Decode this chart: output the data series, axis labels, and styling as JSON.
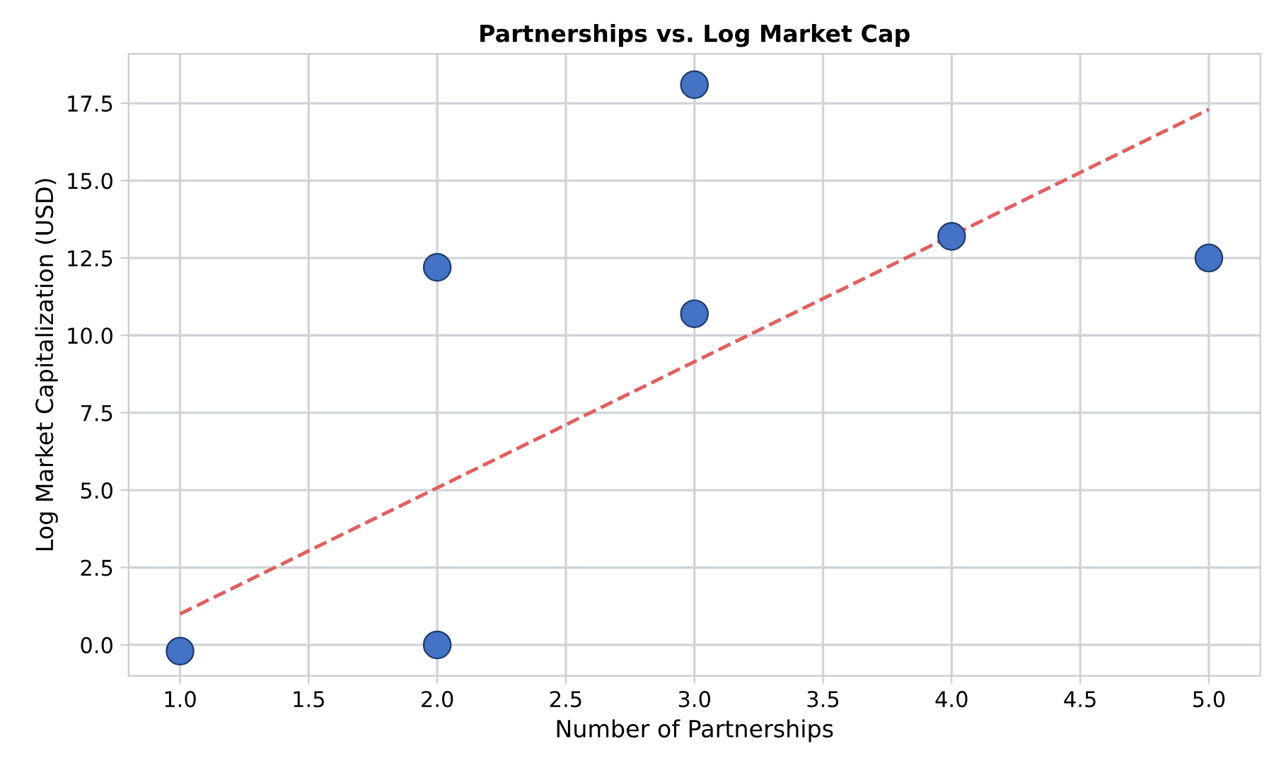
{
  "chart_data": {
    "type": "scatter",
    "title": "Partnerships vs. Log Market Cap",
    "xlabel": "Number of Partnerships",
    "ylabel": "Log Market Capitalization (USD)",
    "series": [
      {
        "color": "#4472c4",
        "x": [
          1.0,
          2.0,
          2.0,
          3.0,
          3.0,
          4.0,
          5.0
        ],
        "values": [
          -0.2,
          0.0,
          12.2,
          18.1,
          10.7,
          13.2,
          12.5
        ],
        "marker": "circle"
      },
      {
        "type": "line",
        "color": "#e06060",
        "x": [
          1.0,
          5.0
        ],
        "values": [
          1.0,
          17.3
        ],
        "line_style": "dashed"
      }
    ],
    "xlim": [
      0.8,
      5.2
    ],
    "ylim": [
      -1.0,
      19.1
    ],
    "xticks": [
      {
        "value": 1,
        "label": "1.0"
      },
      {
        "value": 1.5,
        "label": "1.5"
      },
      {
        "value": 2,
        "label": "2.0"
      },
      {
        "value": 2.5,
        "label": "2.5"
      },
      {
        "value": 3,
        "label": "3.0"
      },
      {
        "value": 3.5,
        "label": "3.5"
      },
      {
        "value": 4,
        "label": "4.0"
      },
      {
        "value": 4.5,
        "label": "4.5"
      },
      {
        "value": 5,
        "label": "5.0"
      }
    ],
    "yticks": [
      {
        "value": 0,
        "label": "0.0"
      },
      {
        "value": 2.5,
        "label": "2.5"
      },
      {
        "value": 5,
        "label": "5.0"
      },
      {
        "value": 7.5,
        "label": "7.5"
      },
      {
        "value": 10,
        "label": "10.0"
      },
      {
        "value": 12.5,
        "label": "12.5"
      },
      {
        "value": 15,
        "label": "15.0"
      },
      {
        "value": 17.5,
        "label": "17.5"
      }
    ],
    "grid": true
  }
}
